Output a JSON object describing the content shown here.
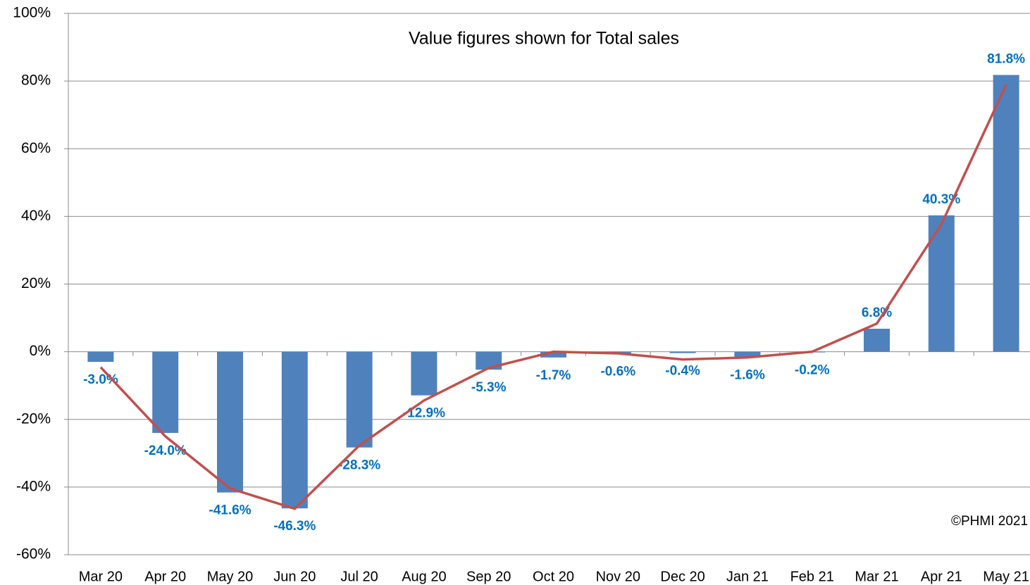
{
  "chart_data": {
    "type": "bar",
    "title": "Value figures shown for Total sales",
    "annotation": "©PHMI 2021",
    "categories": [
      "Mar 20",
      "Apr 20",
      "May 20",
      "Jun 20",
      "Jul 20",
      "Aug 20",
      "Sep 20",
      "Oct 20",
      "Nov 20",
      "Dec 20",
      "Jan 21",
      "Feb 21",
      "Mar 21",
      "Apr 21",
      "May 21"
    ],
    "series": [
      {
        "type": "bar",
        "color": "#4f81bd",
        "values": [
          -3.0,
          -24.0,
          -41.6,
          -46.3,
          -28.3,
          -12.9,
          -5.3,
          -1.7,
          -0.6,
          -0.4,
          -1.6,
          -0.2,
          6.8,
          40.3,
          81.8
        ],
        "value_labels": [
          "-3.0%",
          "-24.0%",
          "-41.6%",
          "-46.3%",
          "-28.3%",
          "-12.9%",
          "-5.3%",
          "-1.7%",
          "-0.6%",
          "-0.4%",
          "-1.6%",
          "-0.2%",
          "6.8%",
          "40.3%",
          "81.8%"
        ],
        "label_color": "#0070c0"
      },
      {
        "type": "line",
        "color": "#c0504d",
        "values": [
          -4.6,
          -25,
          -40.4,
          -46.4,
          -27.7,
          -14.4,
          -4.8,
          0,
          -0.5,
          -2.3,
          -1.7,
          0,
          8.3,
          37.7,
          78.9
        ]
      }
    ],
    "ylim": [
      -60,
      100
    ],
    "yticks": [
      {
        "value": -60,
        "label": "-60%"
      },
      {
        "value": -40,
        "label": "-40%"
      },
      {
        "value": -20,
        "label": "-20%"
      },
      {
        "value": 0,
        "label": "0%"
      },
      {
        "value": 20,
        "label": "20%"
      },
      {
        "value": 40,
        "label": "40%"
      },
      {
        "value": 60,
        "label": "60%"
      },
      {
        "value": 80,
        "label": "80%"
      },
      {
        "value": 100,
        "label": "100%"
      }
    ],
    "grid": true
  }
}
